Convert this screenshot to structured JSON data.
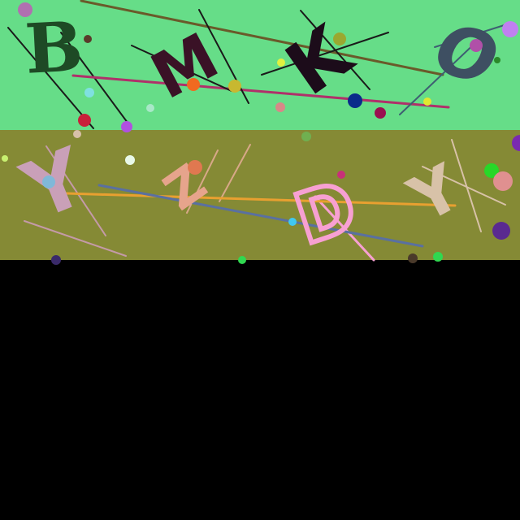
{
  "captcha": {
    "row1": {
      "band_color": "#66DD88",
      "characters": [
        {
          "char": "B",
          "color": "#1E4A25"
        },
        {
          "char": "M",
          "color": "#3A1226"
        },
        {
          "char": "K",
          "color": "#1C0C1A"
        },
        {
          "char": "O",
          "color": "#3E4F62"
        }
      ]
    },
    "row2": {
      "band_color": "#858A35",
      "characters": [
        {
          "char": "Y",
          "color": "#C9A0B8"
        },
        {
          "char": "Z",
          "color": "#E6A48C"
        },
        {
          "char": "D",
          "color": "#F7A0D2"
        },
        {
          "char": "Y",
          "color": "#D8C2A8"
        }
      ]
    },
    "empty_area_color": "#000000"
  }
}
